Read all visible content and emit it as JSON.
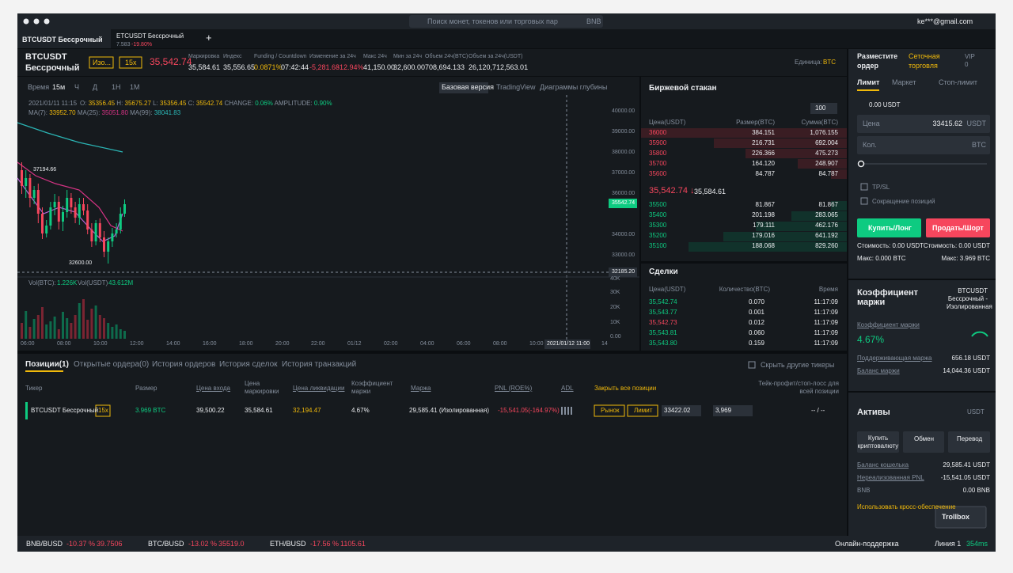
{
  "top_bar": {
    "search_placeholder": "Поиск монет, токенов или торговых пар",
    "search_hotkey": "BNB",
    "account": "ke***@gmail.com"
  },
  "tabs": [
    {
      "title": "BTCUSDT Бессрочный"
    },
    {
      "title": "ETCUSDT Бессрочный",
      "price": "7.583",
      "change": "-19.80%"
    }
  ],
  "ticker": {
    "symbol": "BTCUSDT",
    "contract": "Бессрочный",
    "margin_mode": "Изо...",
    "leverage": "15x",
    "last_price": "35,542.74",
    "stats": [
      {
        "label": "Маркировка",
        "values": [
          "35,584.61"
        ]
      },
      {
        "label": "Индекс",
        "values": [
          "35,556.65"
        ]
      },
      {
        "label": "Funding / Countdown",
        "values": [
          "0.0871%",
          "07:42:44"
        ]
      },
      {
        "label": "Изменение за 24ч",
        "values": [
          "-5,281.68",
          "-12.94%"
        ]
      },
      {
        "label": "Макс 24ч",
        "values": [
          "41,150.00"
        ]
      },
      {
        "label": "Мин за 24ч",
        "values": [
          "32,600.00"
        ]
      },
      {
        "label": "Объем 24ч(BTC)",
        "values": [
          "708,694.133"
        ]
      },
      {
        "label": "Объем за 24ч(USDT)",
        "values": [
          "26,120,712,563.01"
        ]
      }
    ],
    "unit_label": "Единица:",
    "unit": "BTC"
  },
  "chart": {
    "intervals": [
      "Время",
      "15м",
      "Ч",
      "Д",
      "1Н",
      "1М"
    ],
    "views": [
      "Базовая версия",
      "TradingView",
      "Диаграммы глубины"
    ],
    "ohlc": [
      {
        "label": "2021/01/11 11:15"
      },
      {
        "label": "O:",
        "value": "35356.45"
      },
      {
        "label": "H:",
        "value": "35675.27"
      },
      {
        "label": "L:",
        "value": "35356.45"
      },
      {
        "label": "C:",
        "value": "35542.74"
      },
      {
        "label": "CHANGE:",
        "value": "0.06%"
      },
      {
        "label": "AMPLITUDE:",
        "value": "0.90%"
      }
    ],
    "ma": [
      {
        "label": "MA(7):",
        "value": "33952.70"
      },
      {
        "label": "MA(25):",
        "value": "35051.80"
      },
      {
        "label": "MA(99):",
        "value": "38041.83"
      }
    ],
    "high_marker": "37194.66",
    "low_marker": "32600.00",
    "price_axis": [
      "40000.00",
      "39000.00",
      "38000.00",
      "37000.00",
      "36000.00",
      "34000.00",
      "33000.00"
    ],
    "last_price_tag": "35542.74",
    "crosshair_price": "32185.20",
    "volume": {
      "label": "Vol(BTC):",
      "btc": "1.226K",
      "usdt_label": "Vol(USDT)",
      "usdt": "43.612M"
    },
    "volume_axis": [
      "40K",
      "30K",
      "20K",
      "10K",
      "0.00"
    ],
    "time_axis": [
      "06:00",
      "08:00",
      "10:00",
      "12:00",
      "14:00",
      "16:00",
      "18:00",
      "20:00",
      "22:00",
      "01/12",
      "02:00",
      "04:00",
      "06:00",
      "08:00",
      "10:00",
      "14"
    ],
    "crosshair_time": "2021/01/12 11:00"
  },
  "order_book": {
    "title": "Биржевой стакан",
    "depth": "100",
    "headers": [
      "Цена(USDT)",
      "Размер(BTC)",
      "Сумма(BTC)"
    ],
    "asks": [
      [
        "36000",
        "384.151",
        "1,076.155"
      ],
      [
        "35900",
        "216.731",
        "692.004"
      ],
      [
        "35800",
        "226.366",
        "475.273"
      ],
      [
        "35700",
        "164.120",
        "248.907"
      ],
      [
        "35600",
        "84.787",
        "84.787"
      ]
    ],
    "mid_price": "35,542.74 ↓",
    "mark_price": "35,584.61",
    "bids": [
      [
        "35500",
        "81.867",
        "81.867"
      ],
      [
        "35400",
        "201.198",
        "283.065"
      ],
      [
        "35300",
        "179.111",
        "462.176"
      ],
      [
        "35200",
        "179.016",
        "641.192"
      ],
      [
        "35100",
        "188.068",
        "829.260"
      ]
    ]
  },
  "trades": {
    "title": "Сделки",
    "headers": [
      "Цена(USDT)",
      "Количество(BTC)",
      "Время"
    ],
    "rows": [
      {
        "price": "35,542.74",
        "qty": "0.070",
        "time": "11:17:09",
        "color": "#0ecb81"
      },
      {
        "price": "35,543.77",
        "qty": "0.001",
        "time": "11:17:09",
        "color": "#0ecb81"
      },
      {
        "price": "35,542.73",
        "qty": "0.012",
        "time": "11:17:09",
        "color": "#f6465d"
      },
      {
        "price": "35,543.81",
        "qty": "0.060",
        "time": "11:17:09",
        "color": "#0ecb81"
      },
      {
        "price": "35,543.80",
        "qty": "0.159",
        "time": "11:17:09",
        "color": "#0ecb81"
      }
    ]
  },
  "order_form": {
    "title": "Разместите ордер",
    "grid_trading": "Сеточная торговля",
    "vip": "VIP",
    "vip_level": "0",
    "types": [
      "Лимит",
      "Маркет",
      "Стоп-лимит"
    ],
    "available": "0.00 USDT",
    "price_label": "Цена",
    "price": "33415.62",
    "price_unit": "USDT",
    "qty_label": "Кол.",
    "qty_unit": "BTC",
    "tpsl": "TP/SL",
    "reduce_only": "Сокращение позиций",
    "buy": "Купить/Лонг",
    "sell": "Продать/Шорт",
    "buy_cost": "Стоимость: 0.00 USDT",
    "sell_cost": "Стоимость: 0.00 USDT",
    "buy_max": "Макс: 0.000 BTC",
    "sell_max": "Макс: 3.969 BTC"
  },
  "margin": {
    "title": "Коэффициент маржи",
    "contract": "BTCUSDT Бессрочный - Изолированная",
    "ratio_label": "Коэффициент маржи",
    "ratio": "4.67%",
    "maintenance_label": "Поддерживающая маржа",
    "maintenance": "656.18 USDT",
    "balance_label": "Баланс маржи",
    "balance": "14,044.36 USDT"
  },
  "assets": {
    "title": "Активы",
    "currency": "USDT",
    "buttons": [
      "Купить криптовалюту",
      "Обмен",
      "Перевод"
    ],
    "rows": [
      {
        "label": "Баланс кошелька",
        "value": "29,585.41 USDT"
      },
      {
        "label": "Нереализованная PNL",
        "value": "-15,541.05 USDT"
      },
      {
        "label": "BNB",
        "value": "0.00 BNB"
      }
    ],
    "cross_collateral": "Использовать кросс-обеспечение",
    "trollbox": "Trollbox"
  },
  "positions": {
    "tabs": [
      "Позиции(1)",
      "Открытые ордера(0)",
      "История ордеров",
      "История сделок",
      "История транзакций"
    ],
    "hide_others": "Скрыть другие тикеры",
    "headers": [
      "Тикер",
      "Размер",
      "Цена входа",
      "Цена маркировки",
      "Цена ликвидации",
      "Коэффициент маржи",
      "Маржа",
      "PNL (ROE%)",
      "ADL",
      "Закрыть все позиции",
      "Тейк-профит/стоп-лосс для всей позиции"
    ],
    "row": {
      "ticker": "BTCUSDT Бессрочный",
      "leverage": "15x",
      "size": "3.969 BTC",
      "entry": "39,500.22",
      "mark": "35,584.61",
      "liquidation": "32,194.47",
      "margin_ratio": "4.67%",
      "margin": "29,585.41 (Изолированная)",
      "pnl": "-15,541.05(-164.97%)",
      "market": "Рынок",
      "limit": "Лимит",
      "close_price": "33422.02",
      "close_qty": "3,969",
      "tpsl": "-- / --"
    }
  },
  "status_bar": {
    "tickers": [
      {
        "pair": "BNB/BUSD",
        "change": "-10.37 %",
        "price": "39.7506"
      },
      {
        "pair": "BTC/BUSD",
        "change": "-13.02 %",
        "price": "35519.0"
      },
      {
        "pair": "ETH/BUSD",
        "change": "-17.56 %",
        "price": "1105.61"
      }
    ],
    "support": "Онлайн-поддержка",
    "line": "Линия 1",
    "latency": "354ms"
  }
}
